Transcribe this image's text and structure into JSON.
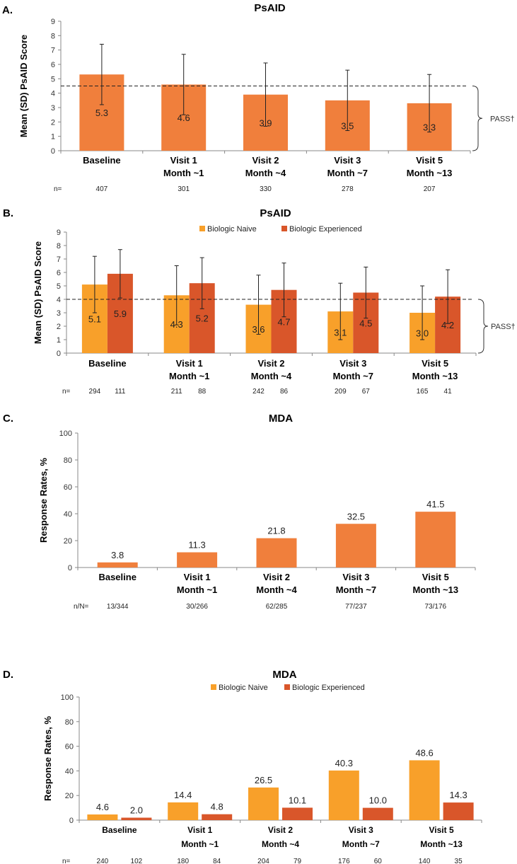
{
  "colors": {
    "single": "#f07f3c",
    "naive": "#f8a02a",
    "experienced": "#d9562a",
    "axis": "#888888",
    "err": "#222222"
  },
  "chart_data": [
    {
      "panel": "A.",
      "type": "bar",
      "title": "PsAID",
      "ylabel": "Mean (SD) PsAID Score",
      "ylim": [
        0,
        9
      ],
      "yticks": [
        0,
        1,
        2,
        3,
        4,
        5,
        6,
        7,
        8,
        9
      ],
      "categories": [
        [
          "Baseline"
        ],
        [
          "Visit 1",
          "Month ~1"
        ],
        [
          "Visit 2",
          "Month ~4"
        ],
        [
          "Visit 3",
          "Month ~7"
        ],
        [
          "Visit 5",
          "Month ~13"
        ]
      ],
      "series": [
        {
          "values": [
            5.3,
            4.6,
            3.9,
            3.5,
            3.3
          ],
          "labels": [
            "5.3",
            "4.6",
            "3.9",
            "3.5",
            "3.3"
          ],
          "err_low": [
            3.2,
            2.5,
            1.7,
            1.4,
            1.3
          ],
          "err_high": [
            7.4,
            6.7,
            6.1,
            5.6,
            5.3
          ]
        }
      ],
      "threshold": 4.5,
      "threshold_label": "PASS†",
      "n_prefix": "n=",
      "n_values": [
        [
          "407"
        ],
        [
          "301"
        ],
        [
          "330"
        ],
        [
          "278"
        ],
        [
          "207"
        ]
      ]
    },
    {
      "panel": "B.",
      "type": "bar",
      "title": "PsAID",
      "ylabel": "Mean (SD) PsAID Score",
      "ylim": [
        0,
        9
      ],
      "yticks": [
        0,
        1,
        2,
        3,
        4,
        5,
        6,
        7,
        8,
        9
      ],
      "legend": [
        "Biologic Naive",
        "Biologic Experienced"
      ],
      "categories": [
        [
          "Baseline"
        ],
        [
          "Visit 1",
          "Month ~1"
        ],
        [
          "Visit 2",
          "Month ~4"
        ],
        [
          "Visit 3",
          "Month ~7"
        ],
        [
          "Visit 5",
          "Month ~13"
        ]
      ],
      "series": [
        {
          "name": "Biologic Naive",
          "values": [
            5.1,
            4.3,
            3.6,
            3.1,
            3.0
          ],
          "labels": [
            "5.1",
            "4.3",
            "3.6",
            "3.1",
            "3.0"
          ],
          "err_low": [
            3.0,
            2.1,
            1.4,
            1.0,
            1.0
          ],
          "err_high": [
            7.2,
            6.5,
            5.8,
            5.2,
            5.0
          ]
        },
        {
          "name": "Biologic Experienced",
          "values": [
            5.9,
            5.2,
            4.7,
            4.5,
            4.2
          ],
          "labels": [
            "5.9",
            "5.2",
            "4.7",
            "4.5",
            "4.2"
          ],
          "err_low": [
            4.1,
            3.3,
            2.7,
            2.6,
            2.2
          ],
          "err_high": [
            7.7,
            7.1,
            6.7,
            6.4,
            6.2
          ]
        }
      ],
      "threshold": 4.0,
      "threshold_label": "PASS†",
      "n_prefix": "n=",
      "n_values": [
        [
          "294",
          "111"
        ],
        [
          "211",
          "88"
        ],
        [
          "242",
          "86"
        ],
        [
          "209",
          "67"
        ],
        [
          "165",
          "41"
        ]
      ]
    },
    {
      "panel": "C.",
      "type": "bar",
      "title": "MDA",
      "ylabel": "Response Rates, %",
      "ylim": [
        0,
        100
      ],
      "yticks": [
        0,
        20,
        40,
        60,
        80,
        100
      ],
      "categories": [
        [
          "Baseline"
        ],
        [
          "Visit 1",
          "Month ~1"
        ],
        [
          "Visit 2",
          "Month ~4"
        ],
        [
          "Visit 3",
          "Month ~7"
        ],
        [
          "Visit 5",
          "Month ~13"
        ]
      ],
      "series": [
        {
          "values": [
            3.8,
            11.3,
            21.8,
            32.5,
            41.5
          ],
          "labels": [
            "3.8",
            "11.3",
            "21.8",
            "32.5",
            "41.5"
          ]
        }
      ],
      "n_prefix": "n/N=",
      "n_values": [
        [
          "13/344"
        ],
        [
          "30/266"
        ],
        [
          "62/285"
        ],
        [
          "77/237"
        ],
        [
          "73/176"
        ]
      ]
    },
    {
      "panel": "D.",
      "type": "bar",
      "title": "MDA",
      "ylabel": "Response Rates, %",
      "ylim": [
        0,
        100
      ],
      "yticks": [
        0,
        20,
        40,
        60,
        80,
        100
      ],
      "legend": [
        "Biologic Naive",
        "Biologic Experienced"
      ],
      "categories": [
        [
          "Baseline"
        ],
        [
          "Visit 1",
          "Month ~1"
        ],
        [
          "Visit 2",
          "Month ~4"
        ],
        [
          "Visit 3",
          "Month ~7"
        ],
        [
          "Visit 5",
          "Month ~13"
        ]
      ],
      "series": [
        {
          "name": "Biologic Naive",
          "values": [
            4.6,
            14.4,
            26.5,
            40.3,
            48.6
          ],
          "labels": [
            "4.6",
            "14.4",
            "26.5",
            "40.3",
            "48.6"
          ]
        },
        {
          "name": "Biologic Experienced",
          "values": [
            2.0,
            4.8,
            10.1,
            10.0,
            14.3
          ],
          "labels": [
            "2.0",
            "4.8",
            "10.1",
            "10.0",
            "14.3"
          ]
        }
      ],
      "n_prefix": "n=",
      "n_values": [
        [
          "240",
          "102"
        ],
        [
          "180",
          "84"
        ],
        [
          "204",
          "79"
        ],
        [
          "176",
          "60"
        ],
        [
          "140",
          "35"
        ]
      ]
    }
  ]
}
